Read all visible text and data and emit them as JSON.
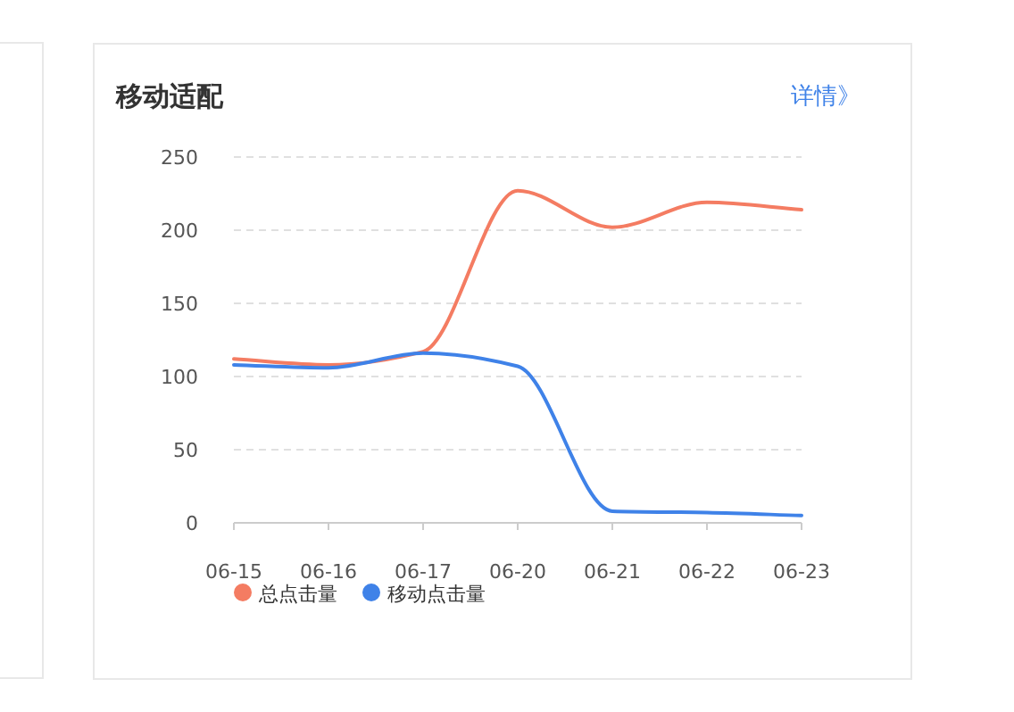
{
  "chart_data": {
    "type": "line",
    "title": "移动适配",
    "annotations": [
      "详情》"
    ],
    "categories": [
      "06-15",
      "06-16",
      "06-17",
      "06-20",
      "06-21",
      "06-22",
      "06-23"
    ],
    "series": [
      {
        "name": "总点击量",
        "color": "#f47c62",
        "values": [
          112,
          108,
          117,
          227,
          202,
          219,
          214
        ]
      },
      {
        "name": "移动点击量",
        "color": "#3f82e8",
        "values": [
          108,
          106,
          116,
          107,
          8,
          7,
          5
        ]
      }
    ],
    "ylim": [
      0,
      250
    ],
    "yticks": [
      0,
      50,
      100,
      150,
      200,
      250
    ],
    "grid": "y",
    "legend": "bottom left",
    "marker": "none",
    "line_style": "solid"
  }
}
